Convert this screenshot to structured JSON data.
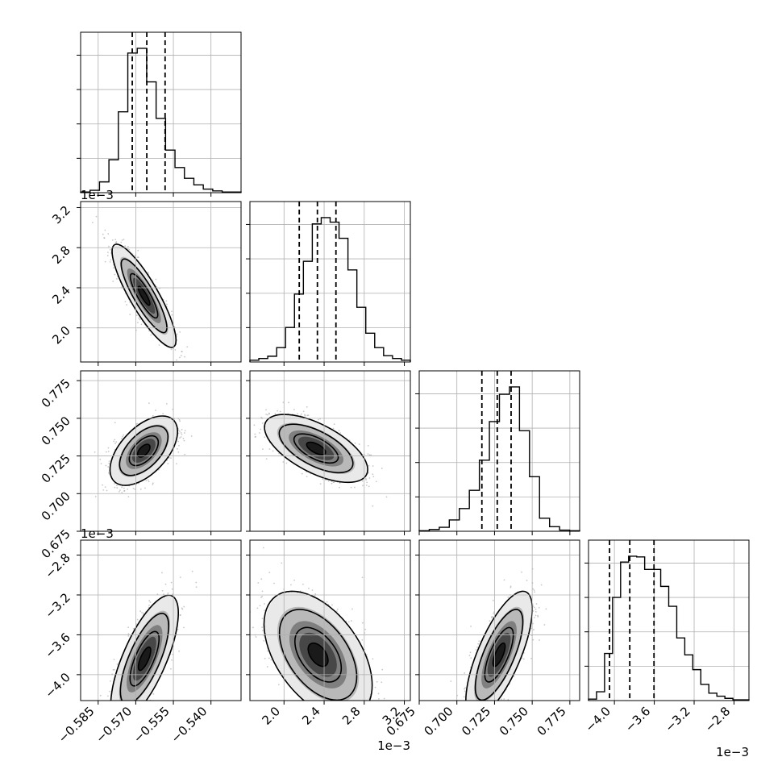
{
  "chart_data": {
    "type": "corner",
    "grid": true,
    "parameters": [
      {
        "ticks": [
          -0.585,
          -0.57,
          -0.555,
          -0.54
        ],
        "tick_labels": [
          "−0.585",
          "−0.570",
          "−0.555",
          "−0.540"
        ],
        "range": [
          -0.592,
          -0.528
        ],
        "offset": "",
        "hist_counts": [
          1,
          4,
          18,
          55,
          135,
          233,
          241,
          185,
          124,
          71,
          42,
          24,
          13,
          6,
          3,
          1,
          1
        ],
        "quantiles": [
          -0.5714,
          -0.5656,
          -0.5583
        ]
      },
      {
        "ticks": [
          0.002,
          0.0024,
          0.0028,
          0.0032
        ],
        "tick_labels": [
          "2.0",
          "2.4",
          "2.8",
          "3.2"
        ],
        "range": [
          0.00166,
          0.00326
        ],
        "offset": "1e−3",
        "hist_counts": [
          3,
          6,
          10,
          25,
          60,
          118,
          175,
          240,
          251,
          243,
          215,
          160,
          95,
          50,
          25,
          11,
          6,
          3
        ],
        "quantiles": [
          0.002152,
          0.002333,
          0.002518
        ]
      },
      {
        "ticks": [
          0.675,
          0.7,
          0.725,
          0.75,
          0.775
        ],
        "tick_labels": [
          "0.675",
          "0.700",
          "0.725",
          "0.750",
          "0.775"
        ],
        "range": [
          0.675,
          0.7815
        ],
        "offset": "",
        "hist_counts": [
          1,
          3,
          7,
          20,
          40,
          72,
          125,
          193,
          241,
          254,
          177,
          96,
          23,
          8,
          2,
          1
        ],
        "quantiles": [
          0.7166,
          0.7268,
          0.736
        ]
      },
      {
        "ticks": [
          -0.004,
          -0.0036,
          -0.0032,
          -0.0028
        ],
        "tick_labels": [
          "−4.0",
          "−3.6",
          "−3.2",
          "−2.8"
        ],
        "range": [
          -0.00426,
          -0.00265
        ],
        "offset": "1e−3",
        "hist_counts": [
          2,
          12,
          64,
          140,
          188,
          196,
          195,
          178,
          178,
          155,
          128,
          85,
          62,
          42,
          22,
          10,
          6,
          3,
          1,
          1
        ],
        "quantiles": [
          -0.004049,
          -0.003846,
          -0.003603
        ]
      }
    ],
    "pairs": [
      {
        "row": 1,
        "col": 0,
        "cx": -0.5667,
        "cy": 0.00232,
        "sx": 0.0052,
        "sy": 0.00021,
        "rho": -0.86
      },
      {
        "row": 2,
        "col": 0,
        "cx": -0.5668,
        "cy": 0.7285,
        "sx": 0.0055,
        "sy": 0.0094,
        "rho": 0.55
      },
      {
        "row": 2,
        "col": 1,
        "cx": 0.00232,
        "cy": 0.73,
        "sx": 0.00021,
        "sy": 0.0092,
        "rho": -0.62
      },
      {
        "row": 3,
        "col": 0,
        "cx": -0.5665,
        "cy": -0.00384,
        "sx": 0.0055,
        "sy": 0.00026,
        "rho": 0.72
      },
      {
        "row": 3,
        "col": 1,
        "cx": 0.00234,
        "cy": -0.0038,
        "sx": 0.00022,
        "sy": 0.00026,
        "rho": -0.48
      },
      {
        "row": 3,
        "col": 2,
        "cx": 0.728,
        "cy": -0.0038,
        "sx": 0.009,
        "sy": 0.00026,
        "rho": 0.72
      }
    ]
  }
}
